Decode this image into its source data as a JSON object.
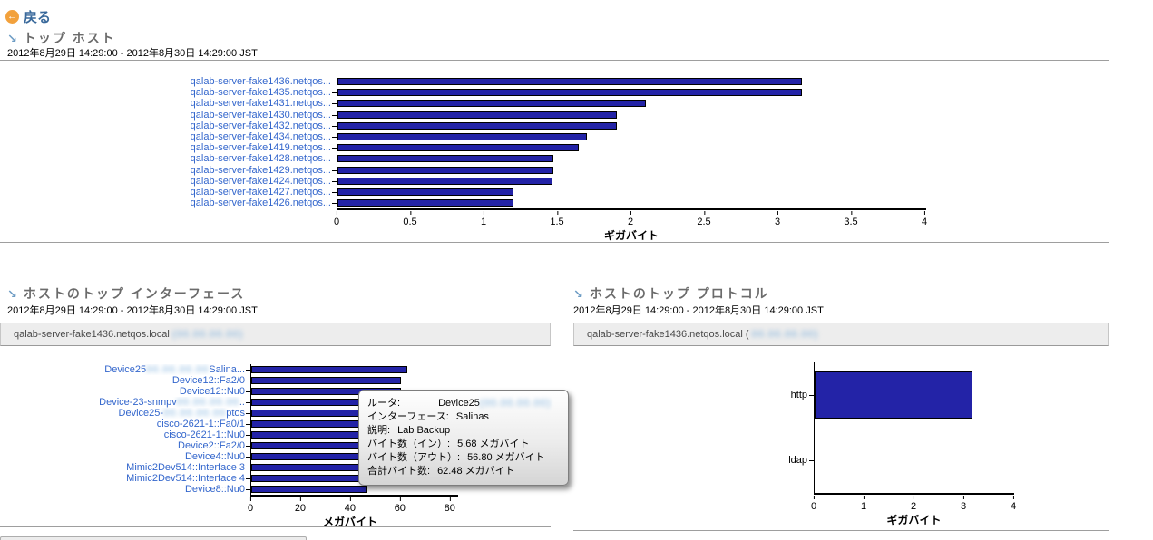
{
  "header": {
    "back_label": "戻る"
  },
  "sections": {
    "top_hosts": {
      "title": "トップ ホスト",
      "date_range": "2012年8月29日 14:29:00 - 2012年8月30日 14:29:00 JST"
    },
    "top_interfaces": {
      "title": "ホストのトップ インターフェース",
      "date_range": "2012年8月29日 14:29:00 - 2012年8月30日 14:29:00 JST",
      "host_banner": "qalab-server-fake1436.netqos.local",
      "host_ip_redacted": "(00.00.00.00)"
    },
    "top_protocols": {
      "title": "ホストのトップ プロトコル",
      "date_range": "2012年8月29日 14:29:00 - 2012年8月30日 14:29:00 JST",
      "host_banner": "qalab-server-fake1436.netqos.local (",
      "host_ip_redacted": "00.00.00.00)"
    }
  },
  "tooltip": {
    "rows": [
      {
        "label": "ルータ:",
        "value": "Device25",
        "redacted": "(00.00.00.00)"
      },
      {
        "label": "インターフェース:",
        "value": "Salinas"
      },
      {
        "label": "説明:",
        "value": "Lab Backup"
      },
      {
        "label": "バイト数（イン）:",
        "value": "5.68 メガバイト"
      },
      {
        "label": "バイト数（アウト）:",
        "value": "56.80 メガバイト"
      },
      {
        "label": "合計バイト数:",
        "value": "62.48 メガバイト"
      }
    ]
  },
  "chart_data": [
    {
      "type": "bar",
      "orientation": "horizontal",
      "title": "トップ ホスト",
      "xlabel": "ギガバイト",
      "xlim": [
        0,
        4
      ],
      "tick_values": [
        0,
        0.5,
        1,
        1.5,
        2,
        2.5,
        3,
        3.5,
        4
      ],
      "tick_labels": [
        "0",
        "0.5",
        "1",
        "1.5",
        "2",
        "2.5",
        "3",
        "3.5",
        "4"
      ],
      "bar_color": "#2323A7",
      "rows": [
        {
          "label": [
            {
              "text": "qalab-server-fake1436.netqos..."
            }
          ],
          "value": 3.16
        },
        {
          "label": [
            {
              "text": "qalab-server-fake1435.netqos..."
            }
          ],
          "value": 3.16
        },
        {
          "label": [
            {
              "text": "qalab-server-fake1431.netqos..."
            }
          ],
          "value": 2.1
        },
        {
          "label": [
            {
              "text": "qalab-server-fake1430.netqos..."
            }
          ],
          "value": 1.9
        },
        {
          "label": [
            {
              "text": "qalab-server-fake1432.netqos..."
            }
          ],
          "value": 1.9
        },
        {
          "label": [
            {
              "text": "qalab-server-fake1434.netqos..."
            }
          ],
          "value": 1.7
        },
        {
          "label": [
            {
              "text": "qalab-server-fake1419.netqos..."
            }
          ],
          "value": 1.64
        },
        {
          "label": [
            {
              "text": "qalab-server-fake1428.netqos..."
            }
          ],
          "value": 1.47
        },
        {
          "label": [
            {
              "text": "qalab-server-fake1429.netqos..."
            }
          ],
          "value": 1.47
        },
        {
          "label": [
            {
              "text": "qalab-server-fake1424.netqos..."
            }
          ],
          "value": 1.46
        },
        {
          "label": [
            {
              "text": "qalab-server-fake1427.netqos..."
            }
          ],
          "value": 1.2
        },
        {
          "label": [
            {
              "text": "qalab-server-fake1426.netqos..."
            }
          ],
          "value": 1.2
        }
      ]
    },
    {
      "type": "bar",
      "orientation": "horizontal",
      "title": "ホストのトップ インターフェース",
      "xlabel": "メガバイト",
      "xlim": [
        0,
        83
      ],
      "tick_values": [
        0,
        20,
        40,
        60,
        80
      ],
      "tick_labels": [
        "0",
        "20",
        "40",
        "60",
        "80"
      ],
      "bar_color": "#2323A7",
      "rows": [
        {
          "label": [
            {
              "text": "Device25"
            },
            {
              "blur": "00.00.00.00"
            },
            {
              "text": "Salina..."
            }
          ],
          "value": 62.48
        },
        {
          "label": [
            {
              "text": "Device12::Fa2/0"
            }
          ],
          "value": 60.2
        },
        {
          "label": [
            {
              "text": "Device12::Nu0"
            }
          ],
          "value": 60.0
        },
        {
          "label": [
            {
              "text": "Device-23-snmpv"
            },
            {
              "blur": "00.00.00.00"
            },
            {
              "text": ".."
            }
          ],
          "value": 59.3
        },
        {
          "label": [
            {
              "text": "Device25-"
            },
            {
              "blur": "00.00.00.00"
            },
            {
              "text": "ptos"
            }
          ],
          "value": 58.6
        },
        {
          "label": [
            {
              "text": "cisco-2621-1::Fa0/1"
            }
          ],
          "value": 58.0
        },
        {
          "label": [
            {
              "text": "cisco-2621-1::Nu0"
            }
          ],
          "value": 57.2
        },
        {
          "label": [
            {
              "text": "Device2::Fa2/0"
            }
          ],
          "value": 56.4
        },
        {
          "label": [
            {
              "text": "Device4::Nu0"
            }
          ],
          "value": 55.0
        },
        {
          "label": [
            {
              "text": "Mimic2Dev514::Interface 3"
            }
          ],
          "value": 49.5
        },
        {
          "label": [
            {
              "text": "Mimic2Dev514::Interface 4"
            }
          ],
          "value": 48.4
        },
        {
          "label": [
            {
              "text": "Device8::Nu0"
            }
          ],
          "value": 46.5
        }
      ]
    },
    {
      "type": "bar",
      "orientation": "horizontal",
      "title": "ホストのトップ プロトコル",
      "xlabel": "ギガバイト",
      "xlim": [
        0,
        4
      ],
      "tick_values": [
        0,
        1,
        2,
        3,
        4
      ],
      "tick_labels": [
        "0",
        "1",
        "2",
        "3",
        "4"
      ],
      "bar_color": "#2323A7",
      "rows": [
        {
          "label": [
            {
              "text": "http"
            }
          ],
          "value": 3.16
        },
        {
          "label": [
            {
              "text": "ldap"
            }
          ],
          "value": 0
        }
      ]
    }
  ]
}
